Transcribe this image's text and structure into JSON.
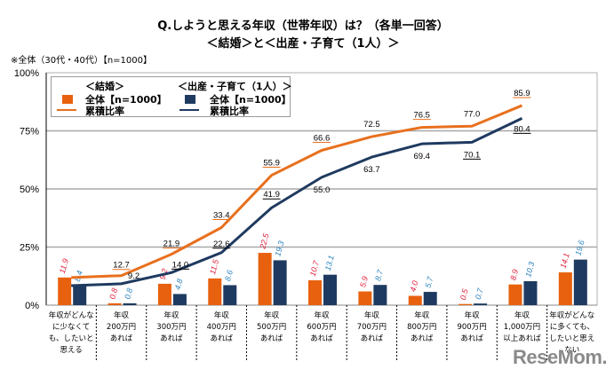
{
  "chart_data": {
    "type": "bar+line",
    "title": "Q.しようと思える年収（世帯年収）は？（各単一回答）",
    "subtitle": "＜結婚＞と＜出産・子育て（1人）＞",
    "note": "※全体（30代・40代）【n=1000】",
    "ylim": [
      0,
      100
    ],
    "yticks": [
      "0%",
      "25%",
      "50%",
      "75%",
      "100%"
    ],
    "ytick_values": [
      0,
      25,
      50,
      75,
      100
    ],
    "grid": true,
    "legend_position": "top-left",
    "categories": [
      [
        "年収がどんな",
        "に少なくて",
        "も、したいと",
        "思える"
      ],
      [
        "年収",
        "200万円",
        "あれば"
      ],
      [
        "年収",
        "300万円",
        "あれば"
      ],
      [
        "年収",
        "400万円",
        "あれば"
      ],
      [
        "年収",
        "500万円",
        "あれば"
      ],
      [
        "年収",
        "600万円",
        "あれば"
      ],
      [
        "年収",
        "700万円",
        "あれば"
      ],
      [
        "年収",
        "800万円",
        "あれば"
      ],
      [
        "年収",
        "900万円",
        "あれば"
      ],
      [
        "年収",
        "1,000万円",
        "以上あれば"
      ],
      [
        "年収がどんな",
        "に多くても、",
        "したいと思え",
        "ない"
      ]
    ],
    "series": [
      {
        "name": "＜結婚＞ 全体【n=1000】",
        "kind": "bar",
        "color": "#E8610E",
        "label_color": "#E0203C",
        "values": [
          11.9,
          0.8,
          9.2,
          11.5,
          22.5,
          10.7,
          5.9,
          4.0,
          0.5,
          8.9,
          14.1
        ]
      },
      {
        "name": "＜出産・子育て（1人）＞ 全体【n=1000】",
        "kind": "bar",
        "color": "#1F3A60",
        "label_color": "#2E86C1",
        "values": [
          8.4,
          0.8,
          4.8,
          8.6,
          19.3,
          13.1,
          8.7,
          5.7,
          0.7,
          10.3,
          19.6
        ]
      },
      {
        "name": "＜結婚＞ 累積比率",
        "kind": "line",
        "color": "#E8701E",
        "values": [
          11.9,
          12.7,
          21.9,
          33.4,
          55.9,
          66.6,
          72.5,
          76.5,
          77.0,
          85.9
        ]
      },
      {
        "name": "＜出産・子育て（1人）＞ 累積比率",
        "kind": "line",
        "color": "#1F3A60",
        "values": [
          8.4,
          9.2,
          14.0,
          22.6,
          41.9,
          55.0,
          63.7,
          69.4,
          70.1,
          80.4
        ]
      }
    ]
  },
  "legend": {
    "group1_header": "＜結婚＞",
    "group2_header": "＜出産・子育て（1人）＞",
    "group1_bar": "全体【n=1000】",
    "group2_bar": "全体【n=1000】",
    "group1_line": "累積比率",
    "group2_line": "累積比率"
  },
  "watermark": "ReseMom."
}
